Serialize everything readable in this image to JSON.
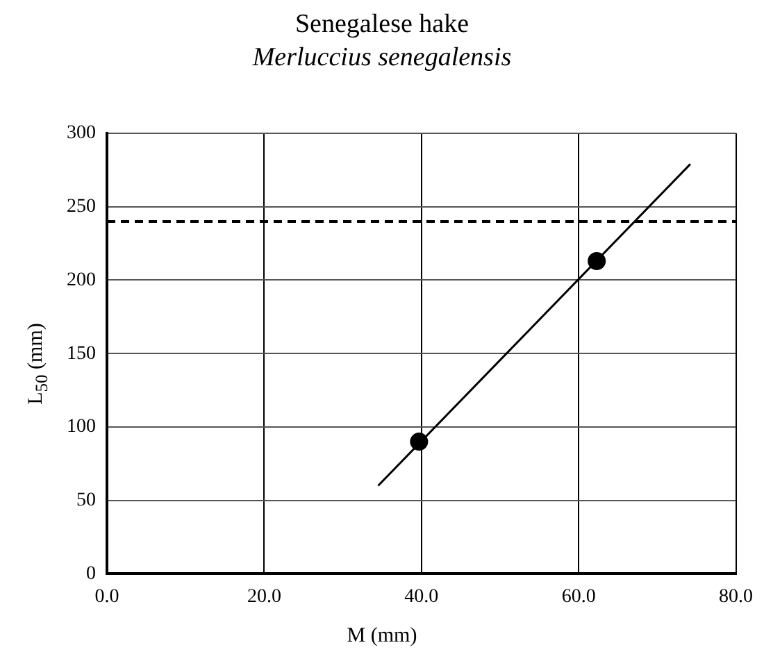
{
  "chart_data": {
    "type": "scatter",
    "title": "Senegalese hake",
    "subtitle": "Merluccius senegalensis",
    "xlabel": "M (mm)",
    "ylabel": "L$_{50}$ (mm)",
    "xlim": [
      0,
      80
    ],
    "xticks": [
      {
        "value": 0,
        "label": "0.0"
      },
      {
        "value": 20,
        "label": "20.0"
      },
      {
        "value": 40,
        "label": "40.0"
      },
      {
        "value": 60,
        "label": "60.0"
      },
      {
        "value": 80,
        "label": "80.0"
      }
    ],
    "ylim": [
      0,
      300
    ],
    "yticks": [
      0,
      50,
      100,
      150,
      200,
      250,
      300
    ],
    "grid": true,
    "legend": false,
    "series": [
      {
        "type": "scatter",
        "color": "#000000",
        "marker": "circle",
        "x": [
          39.7,
          62.3
        ],
        "values": [
          90,
          213
        ]
      },
      {
        "type": "line",
        "color": "#000000",
        "marker": "none",
        "line_style": "solid",
        "x": [
          34.5,
          74.2
        ],
        "values": [
          60,
          279
        ]
      }
    ],
    "ref_lines": [
      {
        "axis": "y",
        "value": 240,
        "color": "#000000",
        "line_style": "dashed"
      }
    ]
  }
}
